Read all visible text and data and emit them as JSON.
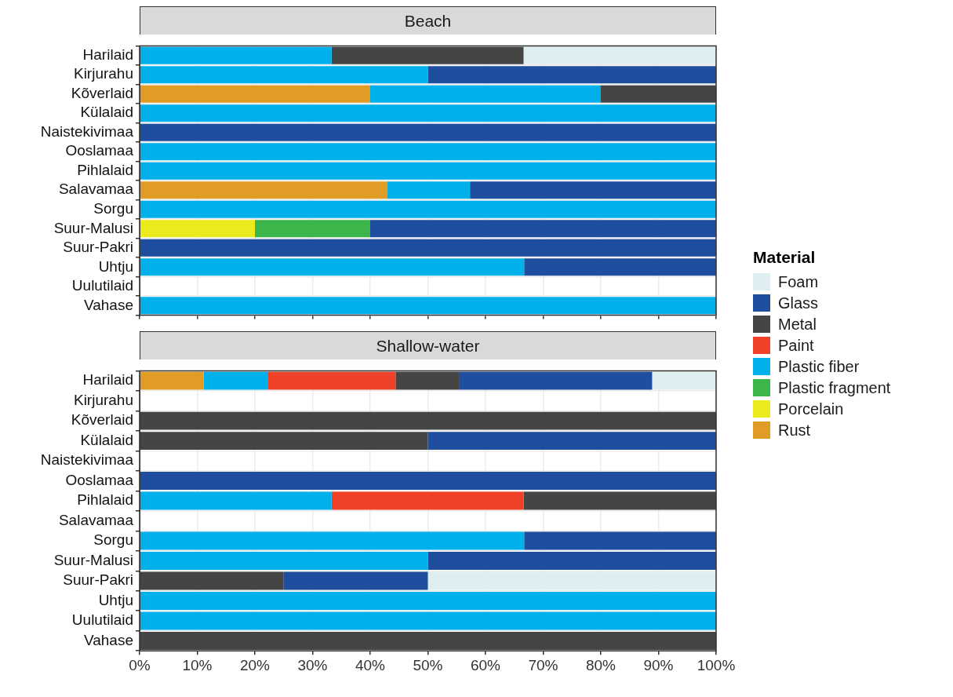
{
  "chart_data": [
    {
      "type": "bar",
      "title": "Beach",
      "orientation": "horizontal",
      "stacked": true,
      "grid": true,
      "legend": "right",
      "legend_title": "Material",
      "tick_labels": "y",
      "xlim": [
        0,
        100
      ],
      "xticks": [
        0,
        10,
        20,
        30,
        40,
        50,
        60,
        70,
        80,
        90,
        100
      ],
      "categories": [
        "Harilaid",
        "Kirjurahu",
        "Kõverlaid",
        "Külalaid",
        "Naistekivimaa",
        "Ooslamaa",
        "Pihlalaid",
        "Salavamaa",
        "Sorgu",
        "Suur-Malusi",
        "Suur-Pakri",
        "Uhtju",
        "Uulutilaid",
        "Vahase"
      ],
      "series": [
        {
          "name": "Rust",
          "color": "#e09c24",
          "values": [
            null,
            null,
            40,
            null,
            null,
            null,
            null,
            43,
            null,
            null,
            null,
            null,
            null,
            null
          ]
        },
        {
          "name": "Porcelain",
          "color": "#eaea1c",
          "values": [
            null,
            null,
            null,
            null,
            null,
            null,
            null,
            null,
            null,
            20,
            null,
            null,
            null,
            null
          ]
        },
        {
          "name": "Plastic fragment",
          "color": "#3cb54a",
          "values": [
            null,
            null,
            null,
            null,
            null,
            null,
            null,
            null,
            null,
            20,
            null,
            null,
            null,
            null
          ]
        },
        {
          "name": "Plastic fiber",
          "color": "#00b0eb",
          "values": [
            33.3,
            50,
            40,
            100,
            null,
            100,
            100,
            14.3,
            100,
            null,
            null,
            66.7,
            null,
            100
          ]
        },
        {
          "name": "Paint",
          "color": "#ee4128",
          "values": [
            null,
            null,
            null,
            null,
            null,
            null,
            null,
            null,
            null,
            null,
            null,
            null,
            null,
            null
          ]
        },
        {
          "name": "Metal",
          "color": "#454545",
          "values": [
            33.3,
            null,
            20,
            null,
            null,
            null,
            null,
            null,
            null,
            null,
            null,
            null,
            null,
            null
          ]
        },
        {
          "name": "Glass",
          "color": "#1f4e9f",
          "values": [
            null,
            50,
            null,
            null,
            100,
            null,
            null,
            42.7,
            null,
            60,
            100,
            33.3,
            null,
            null
          ]
        },
        {
          "name": "Foam",
          "color": "#dfeef0",
          "values": [
            33.4,
            null,
            null,
            null,
            null,
            null,
            null,
            null,
            null,
            null,
            null,
            null,
            null,
            null
          ]
        }
      ]
    },
    {
      "type": "bar",
      "title": "Shallow-water",
      "orientation": "horizontal",
      "stacked": true,
      "grid": true,
      "xlim": [
        0,
        100
      ],
      "xticks": [
        {
          "value": 0,
          "label": "0%"
        },
        {
          "value": 10,
          "label": "10%"
        },
        {
          "value": 20,
          "label": "20%"
        },
        {
          "value": 30,
          "label": "30%"
        },
        {
          "value": 40,
          "label": "40%"
        },
        {
          "value": 50,
          "label": "50%"
        },
        {
          "value": 60,
          "label": "60%"
        },
        {
          "value": 70,
          "label": "70%"
        },
        {
          "value": 80,
          "label": "80%"
        },
        {
          "value": 90,
          "label": "90%"
        },
        {
          "value": 100,
          "label": "100%"
        }
      ],
      "categories": [
        "Harilaid",
        "Kirjurahu",
        "Kõverlaid",
        "Külalaid",
        "Naistekivimaa",
        "Ooslamaa",
        "Pihlalaid",
        "Salavamaa",
        "Sorgu",
        "Suur-Malusi",
        "Suur-Pakri",
        "Uhtju",
        "Uulutilaid",
        "Vahase"
      ],
      "series": [
        {
          "color": "#e09c24",
          "values": [
            11.1,
            null,
            null,
            null,
            null,
            null,
            null,
            null,
            null,
            null,
            null,
            null,
            null,
            null
          ]
        },
        {
          "color": "#00b0eb",
          "values": [
            11.1,
            null,
            null,
            null,
            null,
            null,
            33.3,
            null,
            66.7,
            50,
            null,
            100,
            100,
            null
          ]
        },
        {
          "color": "#ee4128",
          "values": [
            22.2,
            null,
            null,
            null,
            null,
            null,
            33.3,
            null,
            null,
            null,
            null,
            null,
            null,
            null
          ]
        },
        {
          "color": "#454545",
          "values": [
            11.1,
            null,
            100,
            50,
            null,
            null,
            33.4,
            null,
            null,
            null,
            25,
            null,
            null,
            100
          ]
        },
        {
          "color": "#1f4e9f",
          "values": [
            33.4,
            null,
            null,
            50,
            null,
            100,
            null,
            null,
            33.3,
            50,
            25,
            null,
            null,
            null
          ]
        },
        {
          "color": "#dfeef0",
          "values": [
            11.1,
            null,
            null,
            null,
            null,
            null,
            null,
            null,
            null,
            null,
            50,
            null,
            null,
            null
          ]
        }
      ]
    }
  ]
}
